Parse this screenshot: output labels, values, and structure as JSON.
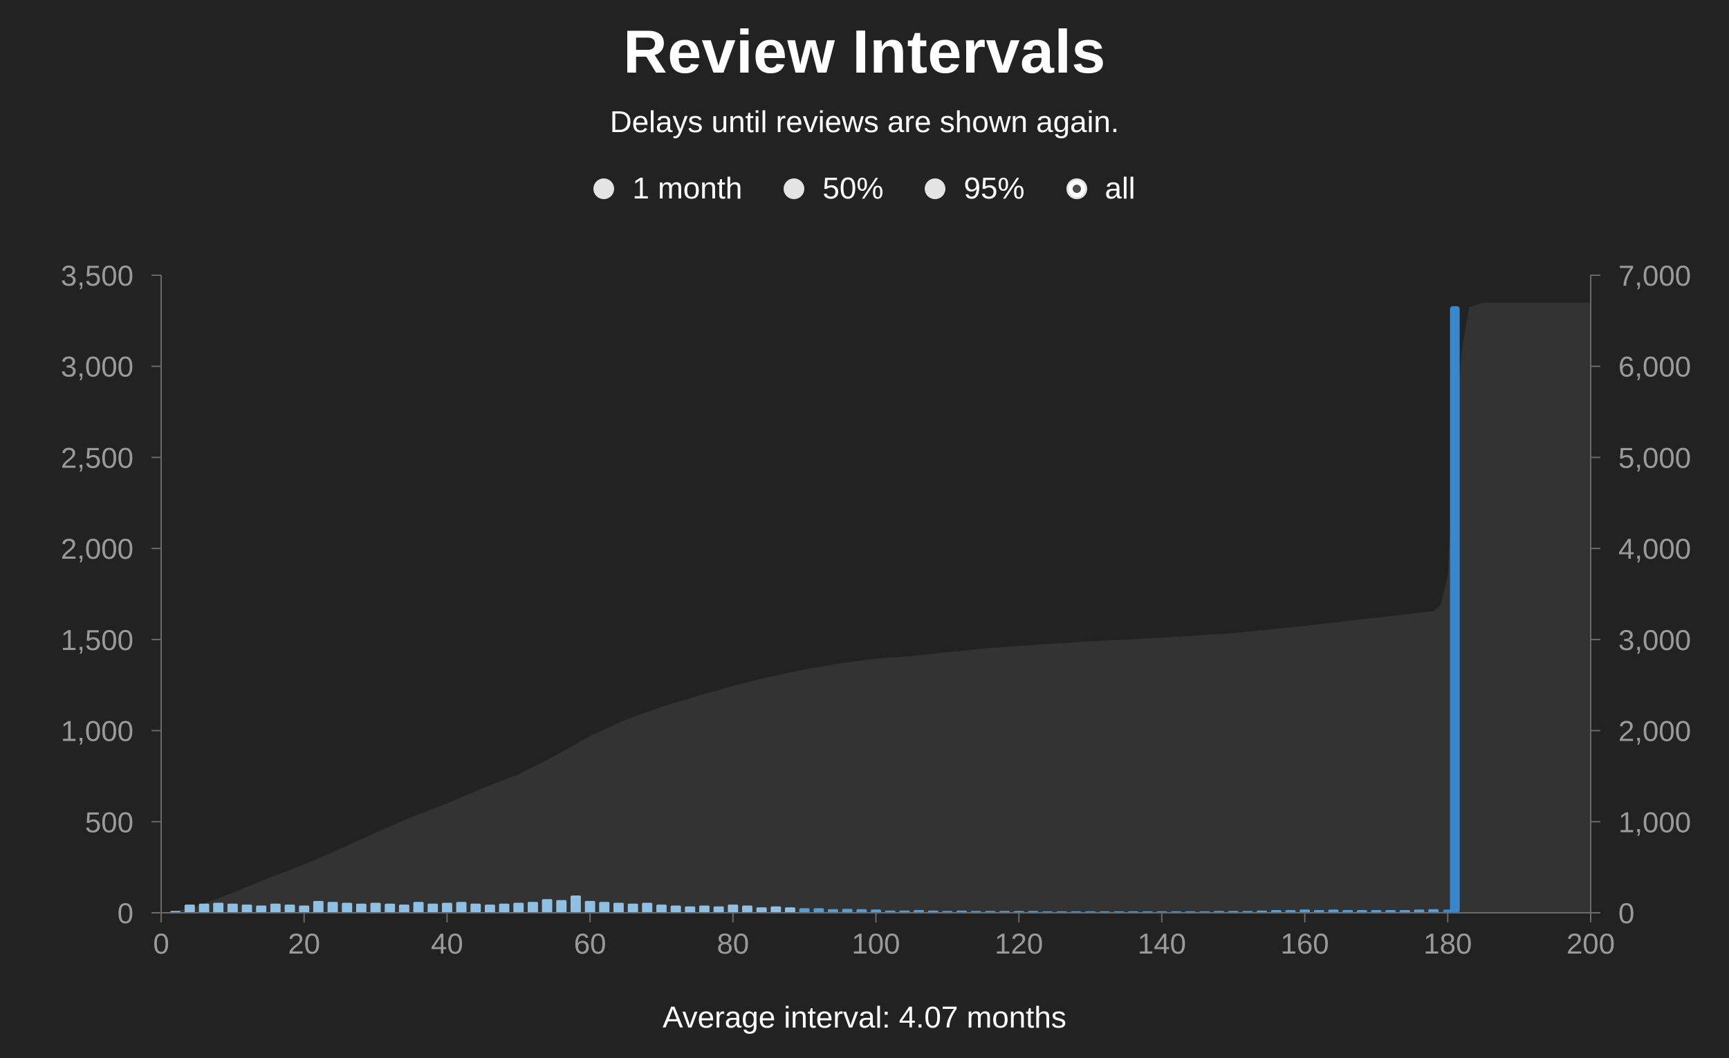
{
  "header": {
    "title": "Review Intervals",
    "subtitle": "Delays until reviews are shown again."
  },
  "range_options": [
    {
      "label": "1 month",
      "selected": false
    },
    {
      "label": "50%",
      "selected": false
    },
    {
      "label": "95%",
      "selected": false
    },
    {
      "label": "all",
      "selected": true
    }
  ],
  "footer": {
    "text": "Average interval: 4.07 months"
  },
  "colors": {
    "background": "#222222",
    "bar_light": "#8fbfe2",
    "bar_mid": "#5a9bd0",
    "bar_dark": "#3a88cc",
    "cumulative_area": "#333333",
    "axis": "#6a6a6a",
    "tick_text": "#9a9a9a"
  },
  "chart_data": {
    "type": "bar",
    "title": "Review Intervals",
    "subtitle": "Delays until reviews are shown again.",
    "xlabel": "",
    "ylabel": "",
    "xlim": [
      0,
      200
    ],
    "ylim_left": [
      0,
      3500
    ],
    "ylim_right": [
      0,
      7000
    ],
    "x_ticks": [
      0,
      20,
      40,
      60,
      80,
      100,
      120,
      140,
      160,
      180,
      200
    ],
    "y_ticks_left": [
      0,
      500,
      1000,
      1500,
      2000,
      2500,
      3000,
      3500
    ],
    "y_ticks_right": [
      0,
      1000,
      2000,
      3000,
      4000,
      5000,
      6000,
      7000
    ],
    "x_tick_labels": [
      "0",
      "20",
      "40",
      "60",
      "80",
      "100",
      "120",
      "140",
      "160",
      "180",
      "200"
    ],
    "y_tick_labels_left": [
      "0",
      "500",
      "1,000",
      "1,500",
      "2,000",
      "2,500",
      "3,000",
      "3,500"
    ],
    "y_tick_labels_right": [
      "0",
      "1,000",
      "2,000",
      "3,000",
      "4,000",
      "5,000",
      "6,000",
      "7,000"
    ],
    "grid": false,
    "legend": "none",
    "series": [
      {
        "kind": "bars",
        "axis": "left",
        "x": [
          2,
          4,
          6,
          8,
          10,
          12,
          14,
          16,
          18,
          20,
          22,
          24,
          26,
          28,
          30,
          32,
          34,
          36,
          38,
          40,
          42,
          44,
          46,
          48,
          50,
          52,
          54,
          56,
          58,
          60,
          62,
          64,
          66,
          68,
          70,
          72,
          74,
          76,
          78,
          80,
          82,
          84,
          86,
          88,
          90,
          92,
          94,
          96,
          98,
          100,
          102,
          104,
          106,
          108,
          110,
          112,
          114,
          116,
          118,
          120,
          122,
          124,
          126,
          128,
          130,
          132,
          134,
          136,
          138,
          140,
          142,
          144,
          146,
          148,
          150,
          152,
          154,
          156,
          158,
          160,
          162,
          164,
          166,
          168,
          170,
          172,
          174,
          176,
          178,
          180,
          181
        ],
        "values": [
          10,
          45,
          50,
          55,
          50,
          45,
          40,
          50,
          45,
          40,
          65,
          60,
          55,
          50,
          55,
          50,
          45,
          60,
          50,
          55,
          60,
          50,
          45,
          50,
          55,
          60,
          75,
          70,
          95,
          65,
          60,
          55,
          50,
          55,
          45,
          40,
          35,
          40,
          35,
          45,
          40,
          30,
          35,
          30,
          25,
          25,
          20,
          22,
          20,
          18,
          12,
          12,
          15,
          12,
          10,
          12,
          10,
          10,
          10,
          10,
          10,
          8,
          8,
          8,
          8,
          8,
          8,
          8,
          8,
          8,
          8,
          8,
          8,
          10,
          10,
          10,
          12,
          15,
          15,
          18,
          15,
          18,
          15,
          15,
          15,
          15,
          15,
          18,
          20,
          18,
          3330
        ]
      },
      {
        "kind": "cumulative",
        "axis": "right",
        "x": [
          2,
          5,
          10,
          15,
          20,
          25,
          30,
          35,
          40,
          45,
          50,
          55,
          60,
          65,
          70,
          75,
          80,
          85,
          90,
          95,
          100,
          105,
          110,
          115,
          120,
          130,
          140,
          150,
          160,
          170,
          178,
          179,
          180,
          181,
          182,
          183,
          185,
          200
        ],
        "values": [
          20,
          70,
          220,
          380,
          530,
          700,
          880,
          1050,
          1200,
          1370,
          1520,
          1720,
          1940,
          2120,
          2260,
          2380,
          2490,
          2590,
          2670,
          2740,
          2790,
          2820,
          2860,
          2900,
          2930,
          2980,
          3020,
          3070,
          3150,
          3240,
          3310,
          3380,
          3700,
          5200,
          6200,
          6650,
          6700,
          6700
        ]
      }
    ]
  }
}
